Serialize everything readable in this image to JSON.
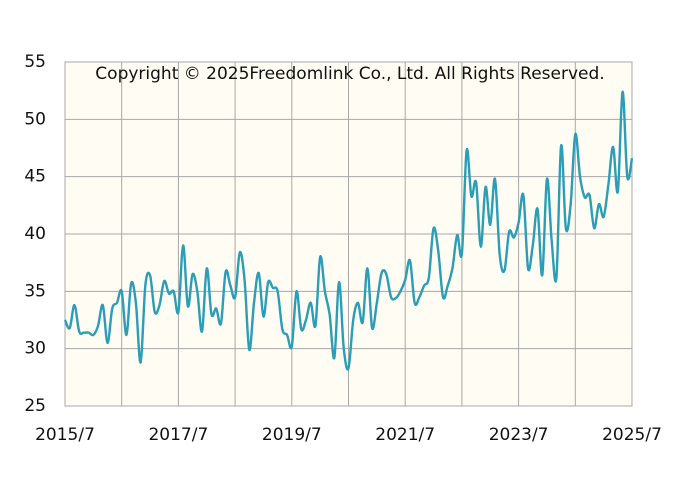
{
  "chart_data": {
    "type": "line",
    "annotation": "Copyright © 2025Freedomlink Co., Ltd. All Rights Reserved.",
    "x": [
      "2015/7",
      "2015/8",
      "2015/9",
      "2015/10",
      "2015/11",
      "2015/12",
      "2016/1",
      "2016/2",
      "2016/3",
      "2016/4",
      "2016/5",
      "2016/6",
      "2016/7",
      "2016/8",
      "2016/9",
      "2016/10",
      "2016/11",
      "2016/12",
      "2017/1",
      "2017/2",
      "2017/3",
      "2017/4",
      "2017/5",
      "2017/6",
      "2017/7",
      "2017/8",
      "2017/9",
      "2017/10",
      "2017/11",
      "2017/12",
      "2018/1",
      "2018/2",
      "2018/3",
      "2018/4",
      "2018/5",
      "2018/6",
      "2018/7",
      "2018/8",
      "2018/9",
      "2018/10",
      "2018/11",
      "2018/12",
      "2019/1",
      "2019/2",
      "2019/3",
      "2019/4",
      "2019/5",
      "2019/6",
      "2019/7",
      "2019/8",
      "2019/9",
      "2019/10",
      "2019/11",
      "2019/12",
      "2020/1",
      "2020/2",
      "2020/3",
      "2020/4",
      "2020/5",
      "2020/6",
      "2020/7",
      "2020/8",
      "2020/9",
      "2020/10",
      "2020/11",
      "2020/12",
      "2021/1",
      "2021/2",
      "2021/3",
      "2021/4",
      "2021/5",
      "2021/6",
      "2021/7",
      "2021/8",
      "2021/9",
      "2021/10",
      "2021/11",
      "2021/12",
      "2022/1",
      "2022/2",
      "2022/3",
      "2022/4",
      "2022/5",
      "2022/6",
      "2022/7",
      "2022/8",
      "2022/9",
      "2022/10",
      "2022/11",
      "2022/12",
      "2023/1",
      "2023/2",
      "2023/3",
      "2023/4",
      "2023/5",
      "2023/6",
      "2023/7",
      "2023/8",
      "2023/9",
      "2023/10",
      "2023/11",
      "2023/12",
      "2024/1",
      "2024/2",
      "2024/3",
      "2024/4",
      "2024/5",
      "2024/6",
      "2024/7",
      "2024/8",
      "2024/9",
      "2024/10",
      "2024/11",
      "2024/12",
      "2025/1",
      "2025/2",
      "2025/3",
      "2025/4",
      "2025/5",
      "2025/6",
      "2025/7"
    ],
    "series": [
      {
        "color": "#2a9db7",
        "values": [
          32.5,
          31.8,
          33.8,
          31.5,
          31.4,
          31.4,
          31.2,
          32,
          33.8,
          30.5,
          33.5,
          34,
          35,
          31.2,
          35.7,
          34,
          28.8,
          35.5,
          36.4,
          33.2,
          33.8,
          35.9,
          34.8,
          35,
          33.2,
          39,
          33.7,
          36.5,
          35,
          31.5,
          37,
          33,
          33.5,
          32.2,
          36.7,
          35.5,
          34.5,
          38.4,
          36,
          29.9,
          34,
          36.6,
          32.8,
          35.8,
          35.3,
          35,
          31.7,
          31.2,
          30.2,
          35,
          31.7,
          32.5,
          34,
          32,
          38,
          35,
          33,
          29.2,
          35.8,
          30,
          28.3,
          32.5,
          34,
          32.3,
          37,
          31.8,
          34,
          36.6,
          36.5,
          34.5,
          34.4,
          35,
          36,
          37.7,
          34,
          34.5,
          35.5,
          36.2,
          40.5,
          38.5,
          34.5,
          35.5,
          37,
          39.9,
          38.3,
          47.3,
          43.3,
          44.5,
          38.9,
          44.1,
          40.8,
          44.8,
          38.2,
          36.8,
          40.2,
          39.7,
          41,
          43.4,
          37,
          39,
          42.2,
          36.4,
          44.8,
          39.4,
          36.2,
          47.7,
          40.5,
          42.5,
          48.7,
          45,
          43.2,
          43.4,
          40.5,
          42.6,
          41.5,
          44.3,
          47.6,
          43.7,
          52.4,
          45,
          46.6
        ]
      }
    ],
    "xticks": [
      "2015/7",
      "2017/7",
      "2019/7",
      "2021/7",
      "2023/7",
      "2025/7"
    ],
    "ylim": [
      25,
      55
    ],
    "yticks": [
      25,
      30,
      35,
      40,
      45,
      50,
      55
    ],
    "grid": true
  }
}
